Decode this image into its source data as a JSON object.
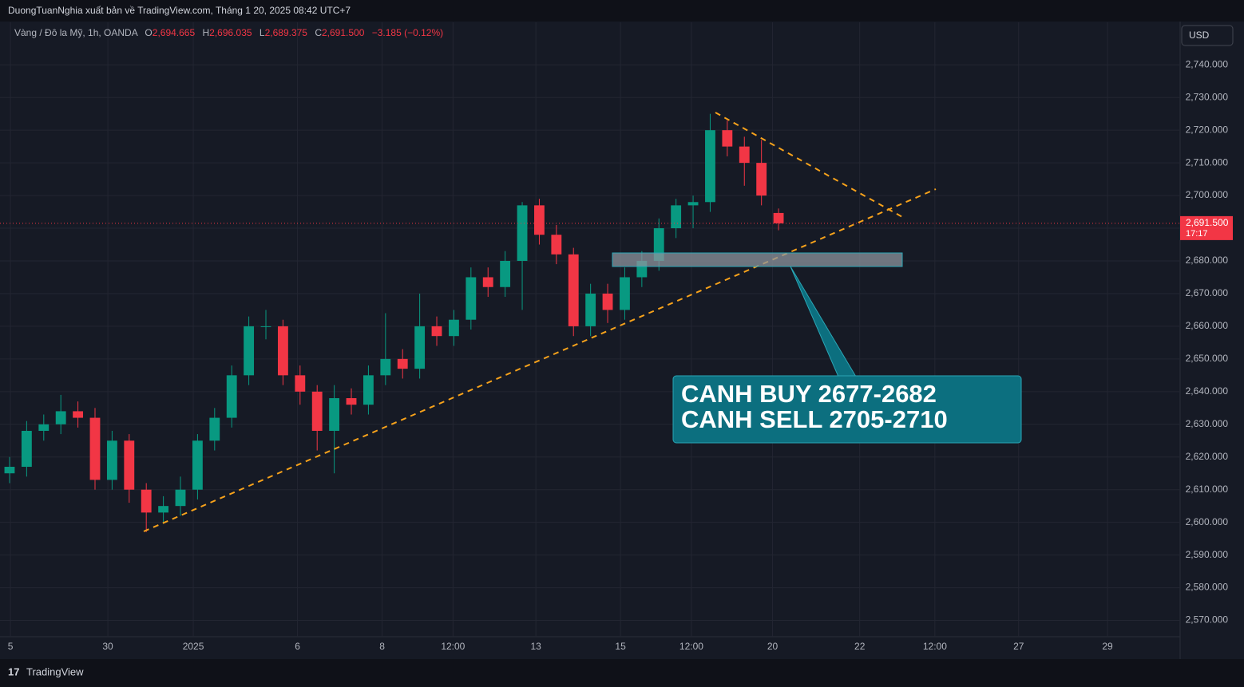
{
  "publisher_bar": "DuongTuanNghia xuất bản về TradingView.com, Tháng 1 20, 2025 08:42 UTC+7",
  "currency_button": "USD",
  "footer_logo": "TradingView",
  "chart_data": {
    "type": "candlestick",
    "legend": {
      "symbol": "Vàng / Đô la Mỹ, 1h, OANDA",
      "open_label": "O",
      "open": "2,694.665",
      "high_label": "H",
      "high": "2,696.035",
      "low_label": "L",
      "low": "2,689.375",
      "close_label": "C",
      "close": "2,691.500",
      "change": "−3.185 (−0.12%)"
    },
    "up_color": "#089981",
    "down_color": "#f23645",
    "grid": true,
    "x": [
      0,
      1,
      2,
      3,
      4,
      5,
      6,
      7,
      8,
      9,
      10,
      11,
      12,
      13,
      14,
      15,
      16,
      17,
      18,
      19,
      20,
      21,
      22,
      23,
      24,
      25,
      26,
      27,
      28,
      29,
      30,
      31,
      32,
      33,
      34,
      35,
      36,
      37,
      38,
      39,
      40,
      41,
      42,
      43,
      44,
      45
    ],
    "open": [
      2615,
      2617,
      2628,
      2630,
      2634,
      2632,
      2613,
      2625,
      2610,
      2603,
      2605,
      2610,
      2625,
      2632,
      2645,
      2660,
      2660,
      2645,
      2640,
      2628,
      2638,
      2636,
      2645,
      2650,
      2647,
      2660,
      2657,
      2662,
      2675,
      2672,
      2680,
      2697,
      2688,
      2682,
      2660,
      2670,
      2665,
      2675,
      2680,
      2690,
      2697,
      2698,
      2720,
      2715,
      2710,
      2694.665
    ],
    "high": [
      2620,
      2631,
      2633,
      2639,
      2637,
      2635,
      2628,
      2627,
      2612,
      2608,
      2614,
      2627,
      2635,
      2648,
      2663,
      2665,
      2662,
      2648,
      2642,
      2642,
      2641,
      2648,
      2664,
      2653,
      2670,
      2663,
      2665,
      2678,
      2678,
      2683,
      2698,
      2699,
      2691,
      2684,
      2673,
      2673,
      2678,
      2683,
      2693,
      2699,
      2700,
      2725,
      2723,
      2718,
      2717,
      2696.035
    ],
    "low": [
      2612,
      2614,
      2625,
      2627,
      2629,
      2610,
      2610,
      2606,
      2597,
      2600,
      2602,
      2607,
      2622,
      2629,
      2642,
      2656,
      2642,
      2636,
      2622,
      2615,
      2633,
      2633,
      2642,
      2644,
      2644,
      2654,
      2654,
      2659,
      2669,
      2669,
      2665,
      2685,
      2679,
      2657,
      2657,
      2661,
      2662,
      2672,
      2677,
      2687,
      2690,
      2695,
      2712,
      2703,
      2697,
      2689.375
    ],
    "close": [
      2617,
      2628,
      2630,
      2634,
      2632,
      2613,
      2625,
      2610,
      2603,
      2605,
      2610,
      2625,
      2632,
      2645,
      2660,
      2660,
      2645,
      2640,
      2628,
      2638,
      2636,
      2645,
      2650,
      2647,
      2660,
      2657,
      2662,
      2675,
      2672,
      2680,
      2697,
      2688,
      2682,
      2660,
      2670,
      2665,
      2675,
      2680,
      2690,
      2697,
      2698,
      2720,
      2715,
      2710,
      2700,
      2691.5
    ],
    "xlim": [
      -0.56,
      68.5
    ],
    "xticks": [
      {
        "value": 0.05,
        "label": "5"
      },
      {
        "value": 5.75,
        "label": "30"
      },
      {
        "value": 10.75,
        "label": "2025"
      },
      {
        "value": 16.85,
        "label": "6"
      },
      {
        "value": 21.8,
        "label": "8"
      },
      {
        "value": 25.95,
        "label": "12:00"
      },
      {
        "value": 30.8,
        "label": "13"
      },
      {
        "value": 35.75,
        "label": "15"
      },
      {
        "value": 39.9,
        "label": "12:00"
      },
      {
        "value": 44.65,
        "label": "20"
      },
      {
        "value": 49.75,
        "label": "22"
      },
      {
        "value": 54.15,
        "label": "12:00"
      },
      {
        "value": 59.05,
        "label": "27"
      },
      {
        "value": 64.25,
        "label": "29"
      }
    ],
    "ylim": [
      2565,
      2753
    ],
    "yticks": [
      {
        "value": 2570,
        "label": "2,570.000"
      },
      {
        "value": 2580,
        "label": "2,580.000"
      },
      {
        "value": 2590,
        "label": "2,590.000"
      },
      {
        "value": 2600,
        "label": "2,600.000"
      },
      {
        "value": 2610,
        "label": "2,610.000"
      },
      {
        "value": 2620,
        "label": "2,620.000"
      },
      {
        "value": 2630,
        "label": "2,630.000"
      },
      {
        "value": 2640,
        "label": "2,640.000"
      },
      {
        "value": 2650,
        "label": "2,650.000"
      },
      {
        "value": 2660,
        "label": "2,660.000"
      },
      {
        "value": 2670,
        "label": "2,670.000"
      },
      {
        "value": 2680,
        "label": "2,680.000"
      },
      {
        "value": 2690,
        "label": "2,690.000"
      },
      {
        "value": 2700,
        "label": "2,700.000"
      },
      {
        "value": 2710,
        "label": "2,710.000"
      },
      {
        "value": 2720,
        "label": "2,720.000"
      },
      {
        "value": 2730,
        "label": "2,730.000"
      },
      {
        "value": 2740,
        "label": "2,740.000"
      }
    ],
    "last_price": {
      "value": 2691.5,
      "label": "2,691.500"
    },
    "countdown": "17:17",
    "annotation_lines": [
      "CANH BUY 2677-2682",
      "CANH SELL 2705-2710"
    ]
  }
}
